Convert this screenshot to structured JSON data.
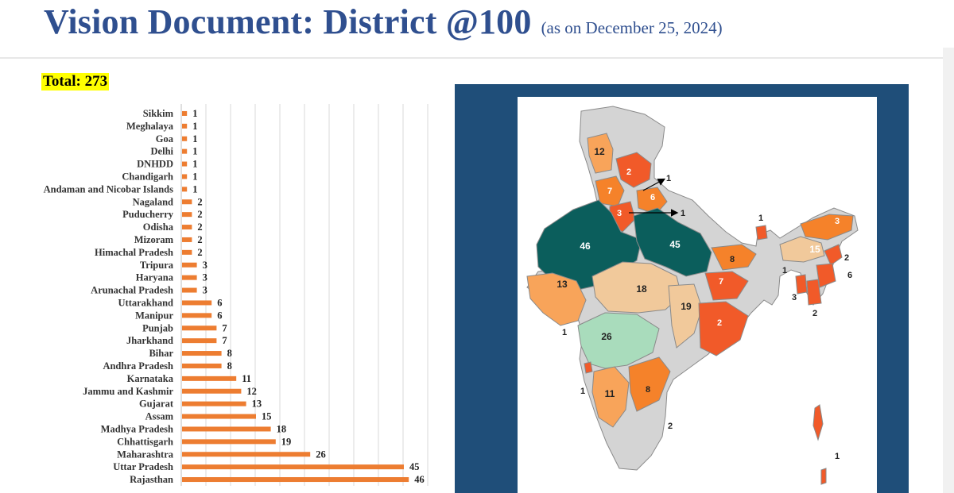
{
  "header": {
    "title": "Vision Document: District @100",
    "subtitle": "(as on December 25, 2024)"
  },
  "total_label": "Total: 273",
  "colors": {
    "title": "#2f4f8f",
    "bar": "#ed7d31",
    "highlight": "#ffff00",
    "map_panel": "#1f4e79",
    "gridline": "#d9d9d9"
  },
  "chart_data": {
    "type": "bar",
    "orientation": "horizontal",
    "title": "",
    "xlabel": "",
    "ylabel": "",
    "grid": true,
    "xlim": [
      0,
      50
    ],
    "categories": [
      "Sikkim",
      "Meghalaya",
      "Goa",
      "Delhi",
      "DNHDD",
      "Chandigarh",
      "Andaman and Nicobar Islands",
      "Nagaland",
      "Puducherry",
      "Odisha",
      "Mizoram",
      "Himachal Pradesh",
      "Tripura",
      "Haryana",
      "Arunachal Pradesh",
      "Uttarakhand",
      "Manipur",
      "Punjab",
      "Jharkhand",
      "Bihar",
      "Andhra Pradesh",
      "Karnataka",
      "Jammu and Kashmir",
      "Gujarat",
      "Assam",
      "Madhya Pradesh",
      "Chhattisgarh",
      "Maharashtra",
      "Uttar Pradesh",
      "Rajasthan"
    ],
    "values": [
      1,
      1,
      1,
      1,
      1,
      1,
      1,
      2,
      2,
      2,
      2,
      2,
      3,
      3,
      3,
      6,
      6,
      7,
      7,
      8,
      8,
      11,
      12,
      13,
      15,
      18,
      19,
      26,
      45,
      46
    ],
    "data_labels": [
      "1",
      "1",
      "1",
      "1",
      "1",
      "1",
      "1",
      "2",
      "2",
      "2",
      "2",
      "2",
      "3",
      "3",
      "3",
      "6",
      "6",
      "7",
      "7",
      "8",
      "8",
      "11",
      "12",
      "13",
      "15",
      "18",
      "19",
      "26",
      "45",
      "46"
    ]
  },
  "map": {
    "labels": [
      {
        "region": "jammu-kashmir",
        "text": "12"
      },
      {
        "region": "himachal-pradesh",
        "text": "2"
      },
      {
        "region": "chandigarh-callout",
        "text": "1"
      },
      {
        "region": "punjab",
        "text": "7"
      },
      {
        "region": "uttarakhand",
        "text": "6"
      },
      {
        "region": "haryana",
        "text": "3"
      },
      {
        "region": "delhi-callout",
        "text": "1"
      },
      {
        "region": "sikkim",
        "text": "1"
      },
      {
        "region": "arunachal-pradesh",
        "text": "3"
      },
      {
        "region": "rajasthan",
        "text": "46"
      },
      {
        "region": "uttar-pradesh",
        "text": "45"
      },
      {
        "region": "assam",
        "text": "15"
      },
      {
        "region": "nagaland",
        "text": "2"
      },
      {
        "region": "manipur",
        "text": "6"
      },
      {
        "region": "meghalaya",
        "text": "1"
      },
      {
        "region": "bihar",
        "text": "8"
      },
      {
        "region": "jharkhand",
        "text": "7"
      },
      {
        "region": "gujarat",
        "text": "13"
      },
      {
        "region": "madhya-pradesh",
        "text": "18"
      },
      {
        "region": "tripura",
        "text": "3"
      },
      {
        "region": "mizoram",
        "text": "2"
      },
      {
        "region": "chhattisgarh",
        "text": "19"
      },
      {
        "region": "odisha",
        "text": "2"
      },
      {
        "region": "dnhdd",
        "text": "1"
      },
      {
        "region": "maharashtra",
        "text": "26"
      },
      {
        "region": "goa",
        "text": "1"
      },
      {
        "region": "karnataka",
        "text": "11"
      },
      {
        "region": "andhra-pradesh",
        "text": "8"
      },
      {
        "region": "puducherry",
        "text": "2"
      },
      {
        "region": "andaman-nicobar",
        "text": "1"
      }
    ]
  }
}
